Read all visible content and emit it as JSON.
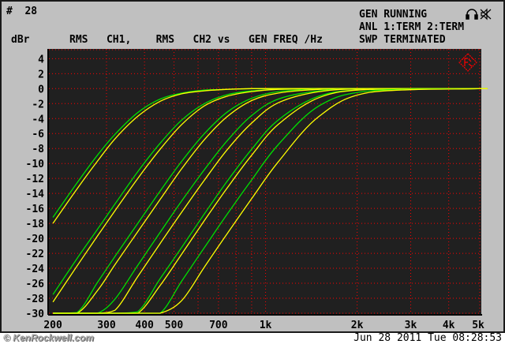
{
  "header": {
    "sweep_number": "#  28",
    "y_unit": "dBr",
    "trace_description": "RMS   CH1,    RMS   CH2 vs   GEN FREQ /Hz",
    "status_lines": [
      "GEN RUNNING",
      "ANL 1:TERM 2:TERM",
      "SWP TERMINATED"
    ],
    "icons": [
      "headphones-icon",
      "speaker-muted-icon"
    ]
  },
  "footer": {
    "watermark": "© KenRockwell.com",
    "timestamp": "Jun 28 2011 Tue 08:28:53"
  },
  "colors": {
    "background": "#c0c0c0",
    "plot_background": "#202020",
    "grid": "#ff0000",
    "ch1": "#00e000",
    "ch2": "#ffff00",
    "logo": "#ff0000"
  },
  "chart_data": {
    "type": "line",
    "title": "",
    "xlabel": "",
    "ylabel": "dBr",
    "x_scale": "log",
    "xlim": [
      194,
      5120
    ],
    "ylim": [
      -30,
      5.3
    ],
    "grid": true,
    "x_ticks": [
      200,
      300,
      400,
      500,
      700,
      1000,
      2000,
      3000,
      4000,
      5000
    ],
    "x_tick_labels": [
      "200",
      "300",
      "400",
      "500",
      "700",
      "1k",
      "2k",
      "3k",
      "4k",
      "5k"
    ],
    "x_grid": [
      300,
      400,
      500,
      600,
      700,
      800,
      900,
      1000,
      2000,
      3000,
      4000
    ],
    "y_ticks": [
      4,
      2,
      0,
      -2,
      -4,
      -6,
      -8,
      -10,
      -12,
      -14,
      -16,
      -18,
      -20,
      -22,
      -24,
      -26,
      -28,
      -30
    ],
    "x": [
      200,
      240,
      280,
      320,
      380,
      450,
      530,
      630,
      750,
      900,
      1100,
      1500,
      2200,
      5000
    ],
    "series": [
      {
        "channel": "CH1",
        "color": "#00e000",
        "values": [
          -17.2,
          -12.6,
          -8.9,
          -6.1,
          -3.2,
          -1.4,
          -0.6,
          -0.2,
          -0.1,
          0,
          0,
          0,
          0,
          0
        ]
      },
      {
        "channel": "CH2",
        "color": "#ffff00",
        "values": [
          -18.0,
          -13.4,
          -9.7,
          -6.7,
          -3.7,
          -1.7,
          -0.7,
          -0.3,
          -0.1,
          0,
          0,
          0,
          0,
          0
        ]
      },
      {
        "channel": "CH1",
        "color": "#00e000",
        "values": [
          -27.5,
          -22.7,
          -18.8,
          -15.4,
          -11.1,
          -7.3,
          -4.2,
          -2.0,
          -0.8,
          -0.3,
          -0.1,
          0,
          0,
          0
        ]
      },
      {
        "channel": "CH2",
        "color": "#ffff00",
        "values": [
          -28.5,
          -23.7,
          -19.7,
          -16.3,
          -12.0,
          -8.1,
          -4.8,
          -2.3,
          -1.0,
          -0.4,
          -0.1,
          0,
          0,
          0
        ]
      },
      {
        "channel": "CH1",
        "color": "#00e000",
        "values": [
          -30,
          -29.9,
          -25.9,
          -22.4,
          -18.0,
          -13.7,
          -9.7,
          -6.0,
          -3.1,
          -1.3,
          -0.4,
          -0.1,
          0,
          0
        ]
      },
      {
        "channel": "CH2",
        "color": "#ffff00",
        "values": [
          -30,
          -30,
          -27.0,
          -23.5,
          -19.1,
          -14.8,
          -10.7,
          -6.8,
          -3.7,
          -1.6,
          -0.6,
          -0.1,
          0,
          0
        ]
      },
      {
        "channel": "CH1",
        "color": "#00e000",
        "values": [
          -30,
          -30,
          -30,
          -28.1,
          -23.6,
          -19.2,
          -15.0,
          -10.8,
          -6.9,
          -3.6,
          -1.4,
          -0.3,
          0,
          0
        ]
      },
      {
        "channel": "CH2",
        "color": "#ffff00",
        "values": [
          -30,
          -30,
          -30,
          -29.6,
          -25.1,
          -20.7,
          -16.5,
          -12.2,
          -8.1,
          -4.6,
          -1.9,
          -0.4,
          0,
          0
        ]
      },
      {
        "channel": "CH1",
        "color": "#00e000",
        "values": [
          -30,
          -30,
          -30,
          -30,
          -29.8,
          -25.4,
          -21.2,
          -16.7,
          -12.3,
          -8.1,
          -4.2,
          -1.0,
          -0.1,
          0
        ]
      },
      {
        "channel": "CH2",
        "color": "#ffff00",
        "values": [
          -30,
          -30,
          -30,
          -30,
          -30,
          -26.3,
          -22.1,
          -17.6,
          -13.2,
          -8.9,
          -4.8,
          -1.2,
          -0.1,
          0
        ]
      },
      {
        "channel": "CH1",
        "color": "#00e000",
        "values": [
          -30,
          -30,
          -30,
          -30,
          -30,
          -30,
          -25.7,
          -21.2,
          -16.7,
          -12.2,
          -7.5,
          -2.3,
          -0.3,
          0
        ]
      },
      {
        "channel": "CH2",
        "color": "#ffff00",
        "values": [
          -30,
          -30,
          -30,
          -30,
          -30,
          -30,
          -28.3,
          -23.8,
          -19.3,
          -14.7,
          -9.8,
          -3.7,
          -0.5,
          0
        ]
      }
    ]
  }
}
